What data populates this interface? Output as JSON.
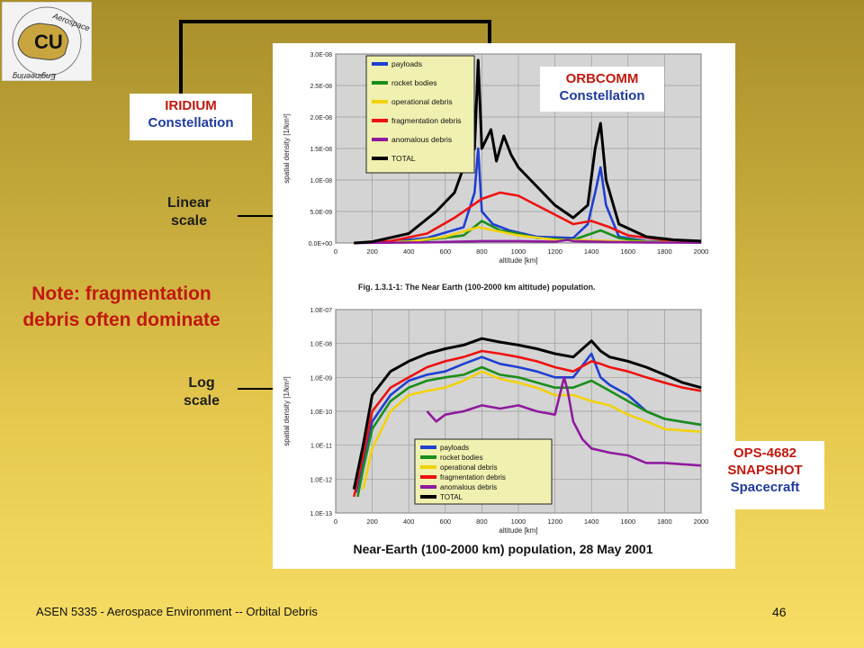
{
  "callouts": {
    "iridium": {
      "line1": "IRIDIUM",
      "line2": "Constellation"
    },
    "orbcomm": {
      "line1": "ORBCOMM",
      "line2": "Constellation"
    },
    "ops": {
      "line1": "OPS-4682",
      "line2": "SNAPSHOT",
      "line3": "Spacecraft"
    }
  },
  "labels": {
    "linear": {
      "line1": "Linear",
      "line2": "scale"
    },
    "log": {
      "line1": "Log",
      "line2": "scale"
    }
  },
  "note": {
    "line1": "Note: fragmentation",
    "line2": "debris often dominate"
  },
  "caption_fig": "Fig. 1.3.1-1: The Near Earth (100-2000 km altitude) population.",
  "caption_main": "Near-Earth (100-2000 km) population, 28 May 2001",
  "footer": {
    "course": "ASEN 5335 - Aerospace Environment -- Orbital Debris",
    "page": "46"
  },
  "logo_text": "Aerospace Engineering",
  "colors": {
    "payloads": "#1f3fd1",
    "rocket_bodies": "#1a8e1a",
    "operational_debris": "#f2d20a",
    "fragmentation_debris": "#ee1111",
    "anomalous_debris": "#8f1a9e",
    "total": "#000000",
    "accent_red": "#c0180f",
    "accent_blue": "#1f3a9a"
  },
  "chart_data": [
    {
      "type": "line",
      "scale": "linear",
      "xlabel": "altitude [km]",
      "ylabel": "spatial density [1/km³]",
      "xlim": [
        0,
        2000
      ],
      "ylim": [
        0,
        3e-08
      ],
      "xticks": [
        "0",
        "200",
        "400",
        "600",
        "800",
        "1000",
        "1200",
        "1400",
        "1600",
        "1800",
        "2000"
      ],
      "yticks": [
        "0.0E+00",
        "5.0E-09",
        "1.0E-08",
        "1.5E-08",
        "2.0E-08",
        "2.5E-08",
        "3.0E-08"
      ],
      "grid": true,
      "legend_position": "top-left",
      "series": [
        {
          "name": "payloads",
          "color_key": "payloads",
          "points": [
            [
              100,
              0
            ],
            [
              300,
              2e-10
            ],
            [
              500,
              8e-10
            ],
            [
              700,
              2.5e-09
            ],
            [
              760,
              8e-09
            ],
            [
              780,
              1.5e-08
            ],
            [
              800,
              5e-09
            ],
            [
              860,
              3e-09
            ],
            [
              950,
              2e-09
            ],
            [
              1100,
              1e-09
            ],
            [
              1300,
              8e-10
            ],
            [
              1380,
              3e-09
            ],
            [
              1420,
              8e-09
            ],
            [
              1450,
              1.2e-08
            ],
            [
              1480,
              6e-09
            ],
            [
              1550,
              1e-09
            ],
            [
              1700,
              3e-10
            ],
            [
              2000,
              1e-10
            ]
          ]
        },
        {
          "name": "rocket bodies",
          "color_key": "rocket_bodies",
          "points": [
            [
              100,
              0
            ],
            [
              300,
              1e-10
            ],
            [
              500,
              5e-10
            ],
            [
              700,
              1.2e-09
            ],
            [
              800,
              3.5e-09
            ],
            [
              900,
              2e-09
            ],
            [
              1000,
              1.5e-09
            ],
            [
              1100,
              8e-10
            ],
            [
              1300,
              5e-10
            ],
            [
              1400,
              1.5e-09
            ],
            [
              1450,
              2e-09
            ],
            [
              1550,
              8e-10
            ],
            [
              1700,
              2e-10
            ],
            [
              2000,
              1e-10
            ]
          ]
        },
        {
          "name": "operational debris",
          "color_key": "operational_debris",
          "points": [
            [
              100,
              0
            ],
            [
              400,
              2e-10
            ],
            [
              600,
              1e-09
            ],
            [
              780,
              2.5e-09
            ],
            [
              900,
              1.8e-09
            ],
            [
              1000,
              1.2e-09
            ],
            [
              1200,
              5e-10
            ],
            [
              1400,
              4e-10
            ],
            [
              1600,
              2e-10
            ],
            [
              2000,
              5e-11
            ]
          ]
        },
        {
          "name": "fragmentation debris",
          "color_key": "fragmentation_debris",
          "points": [
            [
              100,
              0
            ],
            [
              300,
              3e-10
            ],
            [
              500,
              1.5e-09
            ],
            [
              650,
              4e-09
            ],
            [
              800,
              7e-09
            ],
            [
              900,
              8e-09
            ],
            [
              1000,
              7.5e-09
            ],
            [
              1100,
              6e-09
            ],
            [
              1200,
              4.5e-09
            ],
            [
              1300,
              3e-09
            ],
            [
              1400,
              3.5e-09
            ],
            [
              1500,
              2.5e-09
            ],
            [
              1600,
              1.2e-09
            ],
            [
              1800,
              5e-10
            ],
            [
              2000,
              3e-10
            ]
          ]
        },
        {
          "name": "anomalous debris",
          "color_key": "anomalous_debris",
          "points": [
            [
              100,
              0
            ],
            [
              500,
              1e-10
            ],
            [
              800,
              3e-10
            ],
            [
              1000,
              3e-10
            ],
            [
              1200,
              2e-10
            ],
            [
              1270,
              5e-10
            ],
            [
              1300,
              3e-10
            ],
            [
              1500,
              1.5e-10
            ],
            [
              1700,
              8e-11
            ],
            [
              2000,
              5e-11
            ]
          ]
        },
        {
          "name": "TOTAL",
          "color_key": "total",
          "points": [
            [
              100,
              0
            ],
            [
              200,
              2e-10
            ],
            [
              400,
              1.5e-09
            ],
            [
              550,
              5e-09
            ],
            [
              650,
              8e-09
            ],
            [
              700,
              1.2e-08
            ],
            [
              760,
              1.5e-08
            ],
            [
              780,
              2.9e-08
            ],
            [
              800,
              1.5e-08
            ],
            [
              850,
              1.8e-08
            ],
            [
              880,
              1.3e-08
            ],
            [
              920,
              1.7e-08
            ],
            [
              960,
              1.4e-08
            ],
            [
              1000,
              1.2e-08
            ],
            [
              1100,
              9e-09
            ],
            [
              1200,
              6e-09
            ],
            [
              1300,
              4e-09
            ],
            [
              1380,
              6e-09
            ],
            [
              1420,
              1.5e-08
            ],
            [
              1450,
              1.9e-08
            ],
            [
              1480,
              1e-08
            ],
            [
              1550,
              3e-09
            ],
            [
              1700,
              1e-09
            ],
            [
              1850,
              5e-10
            ],
            [
              2000,
              3e-10
            ]
          ]
        }
      ]
    },
    {
      "type": "line",
      "scale": "log",
      "xlabel": "altitude [km]",
      "ylabel": "spatial density [1/km³]",
      "xlim": [
        0,
        2000
      ],
      "ylim": [
        1e-13,
        1e-07
      ],
      "xticks": [
        "0",
        "200",
        "400",
        "600",
        "800",
        "1000",
        "1200",
        "1400",
        "1600",
        "1800",
        "2000"
      ],
      "yticks": [
        "1.0E-13",
        "1.0E-12",
        "1.0E-11",
        "1.0E-10",
        "1.0E-09",
        "1.0E-08",
        "1.0E-07"
      ],
      "grid": true,
      "legend_position": "bottom-center",
      "series": [
        {
          "name": "payloads",
          "color_key": "payloads",
          "points": [
            [
              110,
              4e-13
            ],
            [
              150,
              3e-12
            ],
            [
              200,
              5e-11
            ],
            [
              300,
              3e-10
            ],
            [
              400,
              8e-10
            ],
            [
              500,
              1.2e-09
            ],
            [
              600,
              1.5e-09
            ],
            [
              700,
              2.5e-09
            ],
            [
              800,
              4e-09
            ],
            [
              900,
              2.5e-09
            ],
            [
              1000,
              2e-09
            ],
            [
              1100,
              1.5e-09
            ],
            [
              1200,
              1e-09
            ],
            [
              1300,
              1e-09
            ],
            [
              1400,
              5e-09
            ],
            [
              1450,
              1e-09
            ],
            [
              1500,
              6e-10
            ],
            [
              1600,
              3e-10
            ],
            [
              1700,
              1e-10
            ],
            [
              1800,
              6e-11
            ],
            [
              2000,
              4e-11
            ]
          ]
        },
        {
          "name": "rocket bodies",
          "color_key": "rocket_bodies",
          "points": [
            [
              120,
              3e-13
            ],
            [
              150,
              2e-12
            ],
            [
              200,
              3e-11
            ],
            [
              300,
              2e-10
            ],
            [
              400,
              5e-10
            ],
            [
              500,
              8e-10
            ],
            [
              600,
              1e-09
            ],
            [
              700,
              1.2e-09
            ],
            [
              800,
              2e-09
            ],
            [
              900,
              1.2e-09
            ],
            [
              1000,
              1e-09
            ],
            [
              1200,
              5e-10
            ],
            [
              1300,
              5e-10
            ],
            [
              1400,
              8e-10
            ],
            [
              1500,
              4e-10
            ],
            [
              1600,
              2e-10
            ],
            [
              1700,
              1e-10
            ],
            [
              1800,
              6e-11
            ],
            [
              2000,
              4e-11
            ]
          ]
        },
        {
          "name": "operational debris",
          "color_key": "operational_debris",
          "points": [
            [
              150,
              5e-13
            ],
            [
              200,
              8e-12
            ],
            [
              300,
              1e-10
            ],
            [
              400,
              3e-10
            ],
            [
              500,
              4e-10
            ],
            [
              600,
              5e-10
            ],
            [
              700,
              8e-10
            ],
            [
              800,
              1.5e-09
            ],
            [
              900,
              9e-10
            ],
            [
              1000,
              7e-10
            ],
            [
              1100,
              5e-10
            ],
            [
              1200,
              3e-10
            ],
            [
              1300,
              3e-10
            ],
            [
              1400,
              2e-10
            ],
            [
              1500,
              1.5e-10
            ],
            [
              1600,
              8e-11
            ],
            [
              1700,
              5e-11
            ],
            [
              1800,
              3e-11
            ],
            [
              2000,
              2.5e-11
            ]
          ]
        },
        {
          "name": "fragmentation debris",
          "color_key": "fragmentation_debris",
          "points": [
            [
              100,
              3e-13
            ],
            [
              150,
              5e-12
            ],
            [
              200,
              1e-10
            ],
            [
              300,
              5e-10
            ],
            [
              400,
              1e-09
            ],
            [
              500,
              2e-09
            ],
            [
              600,
              3e-09
            ],
            [
              700,
              4e-09
            ],
            [
              800,
              6e-09
            ],
            [
              900,
              5e-09
            ],
            [
              1000,
              4e-09
            ],
            [
              1100,
              3e-09
            ],
            [
              1200,
              2e-09
            ],
            [
              1300,
              1.5e-09
            ],
            [
              1400,
              3e-09
            ],
            [
              1450,
              2.5e-09
            ],
            [
              1500,
              2e-09
            ],
            [
              1600,
              1.5e-09
            ],
            [
              1700,
              1e-09
            ],
            [
              1800,
              7e-10
            ],
            [
              1900,
              5e-10
            ],
            [
              2000,
              4e-10
            ]
          ]
        },
        {
          "name": "anomalous debris",
          "color_key": "anomalous_debris",
          "points": [
            [
              500,
              1e-10
            ],
            [
              550,
              5e-11
            ],
            [
              600,
              8e-11
            ],
            [
              700,
              1e-10
            ],
            [
              800,
              1.5e-10
            ],
            [
              900,
              1.2e-10
            ],
            [
              1000,
              1.5e-10
            ],
            [
              1100,
              1e-10
            ],
            [
              1200,
              8e-11
            ],
            [
              1250,
              1e-09
            ],
            [
              1270,
              4e-10
            ],
            [
              1300,
              5e-11
            ],
            [
              1350,
              1.5e-11
            ],
            [
              1400,
              8e-12
            ],
            [
              1500,
              6e-12
            ],
            [
              1600,
              5e-12
            ],
            [
              1700,
              3e-12
            ],
            [
              1800,
              3e-12
            ],
            [
              2000,
              2.5e-12
            ]
          ]
        },
        {
          "name": "TOTAL",
          "color_key": "total",
          "points": [
            [
              100,
              5e-13
            ],
            [
              150,
              1e-11
            ],
            [
              200,
              3e-10
            ],
            [
              300,
              1.5e-09
            ],
            [
              400,
              3e-09
            ],
            [
              500,
              5e-09
            ],
            [
              600,
              7e-09
            ],
            [
              700,
              9e-09
            ],
            [
              800,
              1.4e-08
            ],
            [
              900,
              1.1e-08
            ],
            [
              1000,
              9e-09
            ],
            [
              1100,
              7e-09
            ],
            [
              1200,
              5e-09
            ],
            [
              1300,
              4e-09
            ],
            [
              1400,
              1.2e-08
            ],
            [
              1450,
              6e-09
            ],
            [
              1500,
              4e-09
            ],
            [
              1600,
              3e-09
            ],
            [
              1700,
              2e-09
            ],
            [
              1800,
              1.2e-09
            ],
            [
              1900,
              7e-10
            ],
            [
              2000,
              5e-10
            ]
          ]
        }
      ]
    }
  ]
}
